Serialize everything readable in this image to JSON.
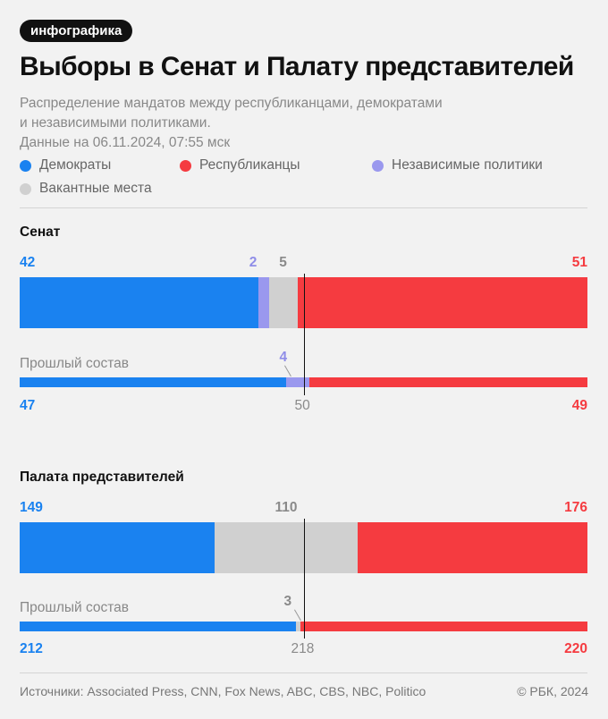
{
  "badge": "инфографика",
  "title": "Выборы в Сенат и Палату представителей",
  "subtitle_line1": "Распределение мандатов между республиканцами, демократами",
  "subtitle_line2": "и независимыми политиками.",
  "subtitle_line3": "Данные на 06.11.2024, 07:55 мск",
  "colors": {
    "dem": "#1a82f0",
    "rep": "#f53b40",
    "ind": "#9a98ee",
    "vac": "#d0d0d0"
  },
  "legend": {
    "dem": "Демократы",
    "rep": "Республиканцы",
    "ind": "Независимые политики",
    "vac": "Вакантные места"
  },
  "chart_data": [
    {
      "type": "bar",
      "title": "Сенат",
      "total": 100,
      "majority": "50",
      "current": {
        "dem": 42,
        "ind": 2,
        "vac": 5,
        "rep": 51,
        "labels": {
          "dem": "42",
          "ind": "2",
          "vac": "5",
          "rep": "51"
        }
      },
      "previous": {
        "label": "Прошлый состав",
        "dem": 47,
        "ind": 4,
        "rep": 49,
        "labels": {
          "dem": "47",
          "ind": "4",
          "rep": "49"
        }
      }
    },
    {
      "type": "bar",
      "title": "Палата представителей",
      "total": 435,
      "majority": "218",
      "current": {
        "dem": 149,
        "vac": 110,
        "rep": 176,
        "labels": {
          "dem": "149",
          "vac": "110",
          "rep": "176"
        }
      },
      "previous": {
        "label": "Прошлый состав",
        "dem": 212,
        "vac": 3,
        "rep": 220,
        "labels": {
          "dem": "212",
          "vac": "3",
          "rep": "220"
        }
      }
    }
  ],
  "footer": {
    "sources": "Источники: Associated Press, CNN, Fox News, ABC, CBS, NBC, Politico",
    "copyright": "© РБК, 2024"
  }
}
